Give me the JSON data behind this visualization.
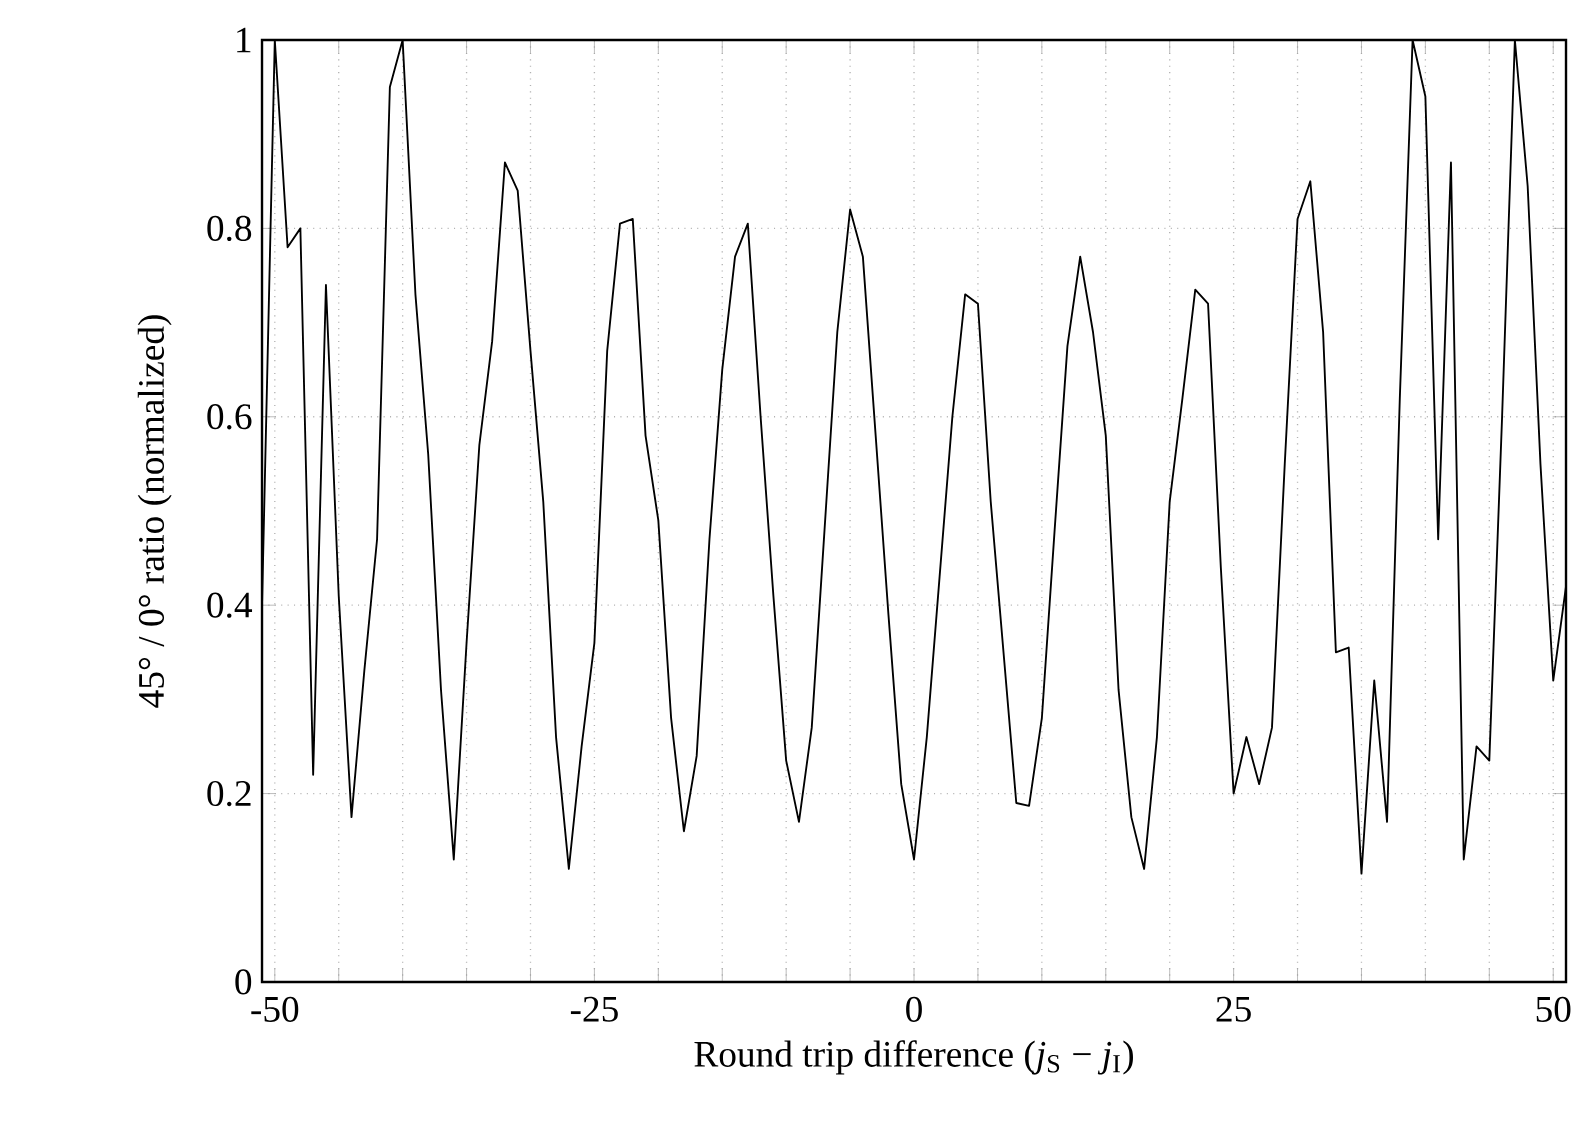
{
  "chart_data": {
    "type": "line",
    "xlabel": "Round trip difference (*j*$_{S}$ − *j*$_{I}$)",
    "ylabel": "45° / 0° ratio (normalized)",
    "x": [
      -51,
      -50,
      -49,
      -48,
      -47,
      -46,
      -45,
      -44,
      -43,
      -42,
      -41,
      -40,
      -39,
      -38,
      -37,
      -36,
      -35,
      -34,
      -33,
      -32,
      -31,
      -30,
      -29,
      -28,
      -27,
      -26,
      -25,
      -24,
      -23,
      -22,
      -21,
      -20,
      -19,
      -18,
      -17,
      -16,
      -15,
      -14,
      -13,
      -12,
      -11,
      -10,
      -9,
      -8,
      -7,
      -6,
      -5,
      -4,
      -3,
      -2,
      -1,
      0,
      1,
      2,
      3,
      4,
      5,
      6,
      7,
      8,
      9,
      10,
      11,
      12,
      13,
      14,
      15,
      16,
      17,
      18,
      19,
      20,
      21,
      22,
      23,
      24,
      25,
      26,
      27,
      28,
      29,
      30,
      31,
      32,
      33,
      34,
      35,
      36,
      37,
      38,
      39,
      40,
      41,
      42,
      43,
      44,
      45,
      46,
      47,
      48,
      49,
      50,
      51
    ],
    "series": [
      {
        "color": "#000000",
        "values": [
          0.4,
          1.0,
          0.78,
          0.8,
          0.22,
          0.74,
          0.41,
          0.175,
          0.33,
          0.47,
          0.95,
          1.0,
          0.73,
          0.56,
          0.31,
          0.13,
          0.36,
          0.57,
          0.68,
          0.87,
          0.84,
          0.67,
          0.51,
          0.26,
          0.12,
          0.25,
          0.36,
          0.67,
          0.805,
          0.81,
          0.58,
          0.49,
          0.28,
          0.16,
          0.24,
          0.47,
          0.65,
          0.77,
          0.805,
          0.6,
          0.41,
          0.235,
          0.17,
          0.27,
          0.48,
          0.69,
          0.82,
          0.77,
          0.58,
          0.39,
          0.21,
          0.13,
          0.26,
          0.43,
          0.6,
          0.73,
          0.72,
          0.51,
          0.35,
          0.19,
          0.187,
          0.28,
          0.48,
          0.675,
          0.77,
          0.69,
          0.58,
          0.31,
          0.175,
          0.12,
          0.26,
          0.51,
          0.62,
          0.735,
          0.72,
          0.44,
          0.2,
          0.26,
          0.21,
          0.27,
          0.55,
          0.81,
          0.85,
          0.69,
          0.35,
          0.355,
          0.115,
          0.32,
          0.17,
          0.62,
          1.0,
          0.94,
          0.47,
          0.87,
          0.13,
          0.25,
          0.235,
          0.6,
          1.0,
          0.845,
          0.55,
          0.32,
          0.42
        ]
      }
    ],
    "xlim": [
      -51,
      51
    ],
    "ylim": [
      0,
      1
    ],
    "xticks": [
      -50,
      {
        "value": -45,
        "label": null
      },
      {
        "value": -40,
        "label": null
      },
      {
        "value": -35,
        "label": null
      },
      {
        "value": -30,
        "label": null
      },
      -25,
      {
        "value": -20,
        "label": null
      },
      {
        "value": -15,
        "label": null
      },
      {
        "value": -10,
        "label": null
      },
      {
        "value": -5,
        "label": null
      },
      0,
      {
        "value": 5,
        "label": null
      },
      {
        "value": 10,
        "label": null
      },
      {
        "value": 15,
        "label": null
      },
      {
        "value": 20,
        "label": null
      },
      25,
      {
        "value": 30,
        "label": null
      },
      {
        "value": 35,
        "label": null
      },
      {
        "value": 40,
        "label": null
      },
      {
        "value": 45,
        "label": null
      },
      50
    ],
    "yticks": [
      0,
      0.2,
      0.4,
      0.6,
      0.8,
      1
    ],
    "grid": true,
    "marker": "none",
    "line_style": "solid"
  }
}
